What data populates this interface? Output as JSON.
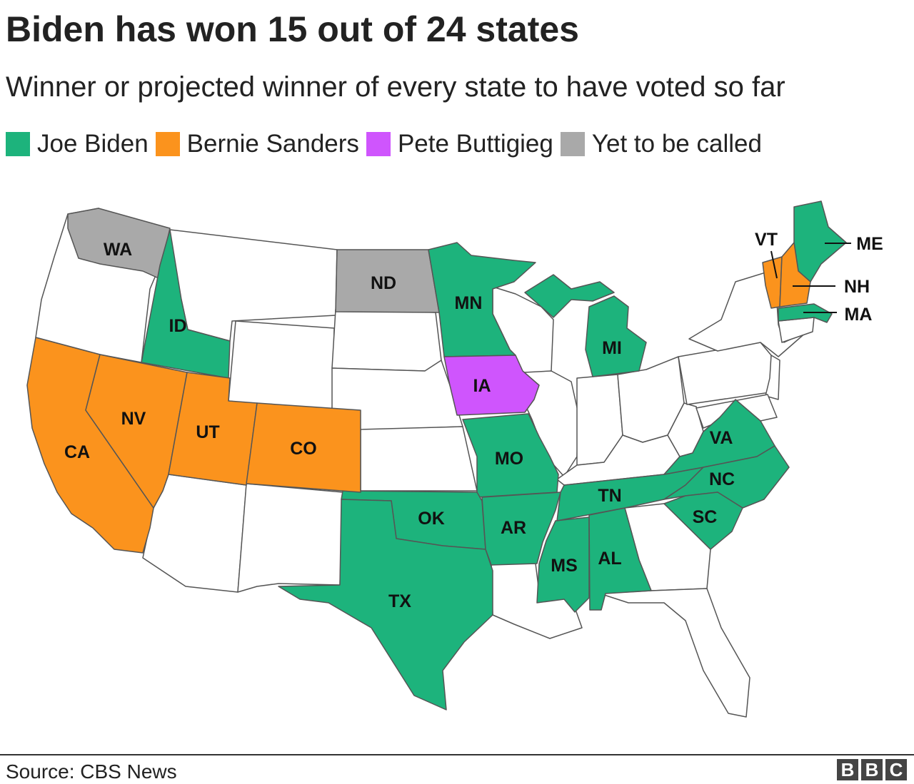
{
  "title": "Biden has won 15 out of 24 states",
  "subtitle": "Winner or projected winner of every state to have voted so far",
  "colors": {
    "biden": "#1db37c",
    "sanders": "#fb931d",
    "buttigieg": "#cf55fd",
    "uncalled": "#a9a9a9",
    "none": "#ffffff",
    "border": "#555555"
  },
  "legend": [
    {
      "label": "Joe Biden",
      "color": "#1db37c"
    },
    {
      "label": "Bernie Sanders",
      "color": "#fb931d"
    },
    {
      "label": "Pete Buttigieg",
      "color": "#cf55fd"
    },
    {
      "label": "Yet to be called",
      "color": "#a9a9a9"
    }
  ],
  "state_labels": {
    "WA": "WA",
    "ND": "ND",
    "MN": "MN",
    "ID": "ID",
    "MI": "MI",
    "IA": "IA",
    "NV": "NV",
    "UT": "UT",
    "CO": "CO",
    "CA": "CA",
    "MO": "MO",
    "OK": "OK",
    "AR": "AR",
    "TN": "TN",
    "TX": "TX",
    "MS": "MS",
    "AL": "AL",
    "VA": "VA",
    "NC": "NC",
    "SC": "SC",
    "VT": "VT",
    "ME": "ME",
    "NH": "NH",
    "MA": "MA"
  },
  "source": "Source: CBS News",
  "logo": [
    "B",
    "B",
    "C"
  ]
}
